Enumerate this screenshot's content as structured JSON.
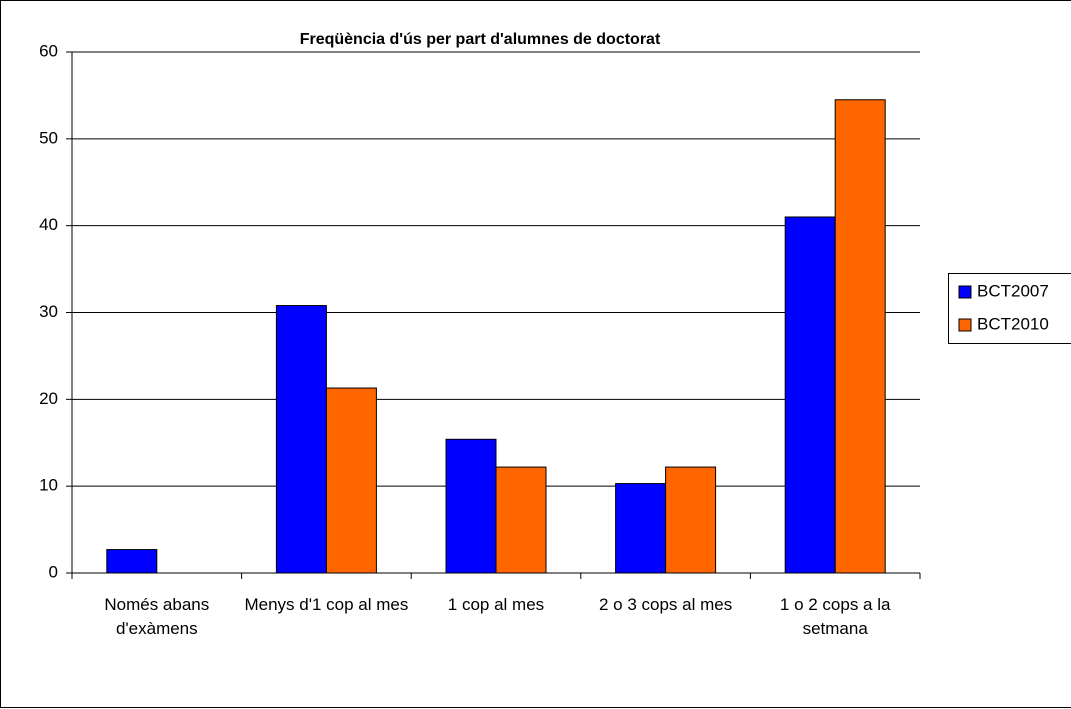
{
  "chart_data": {
    "type": "bar",
    "title": "Freqüència d'ús per part d'alumnes de doctorat",
    "categories": [
      "Només abans d'exàmens",
      "Menys d'1 cop al mes",
      "1 cop al mes",
      "2 o 3 cops al mes",
      "1 o 2 cops a la setmana"
    ],
    "series": [
      {
        "name": "BCT2007",
        "color": "#0000ff",
        "values": [
          2.7,
          30.8,
          15.4,
          10.3,
          41.0
        ]
      },
      {
        "name": "BCT2010",
        "color": "#ff6600",
        "values": [
          0,
          21.3,
          12.2,
          12.2,
          54.5
        ]
      }
    ],
    "ylim": [
      0,
      60
    ],
    "yticks": [
      0,
      10,
      20,
      30,
      40,
      50,
      60
    ],
    "grid": true,
    "legend": "right"
  }
}
